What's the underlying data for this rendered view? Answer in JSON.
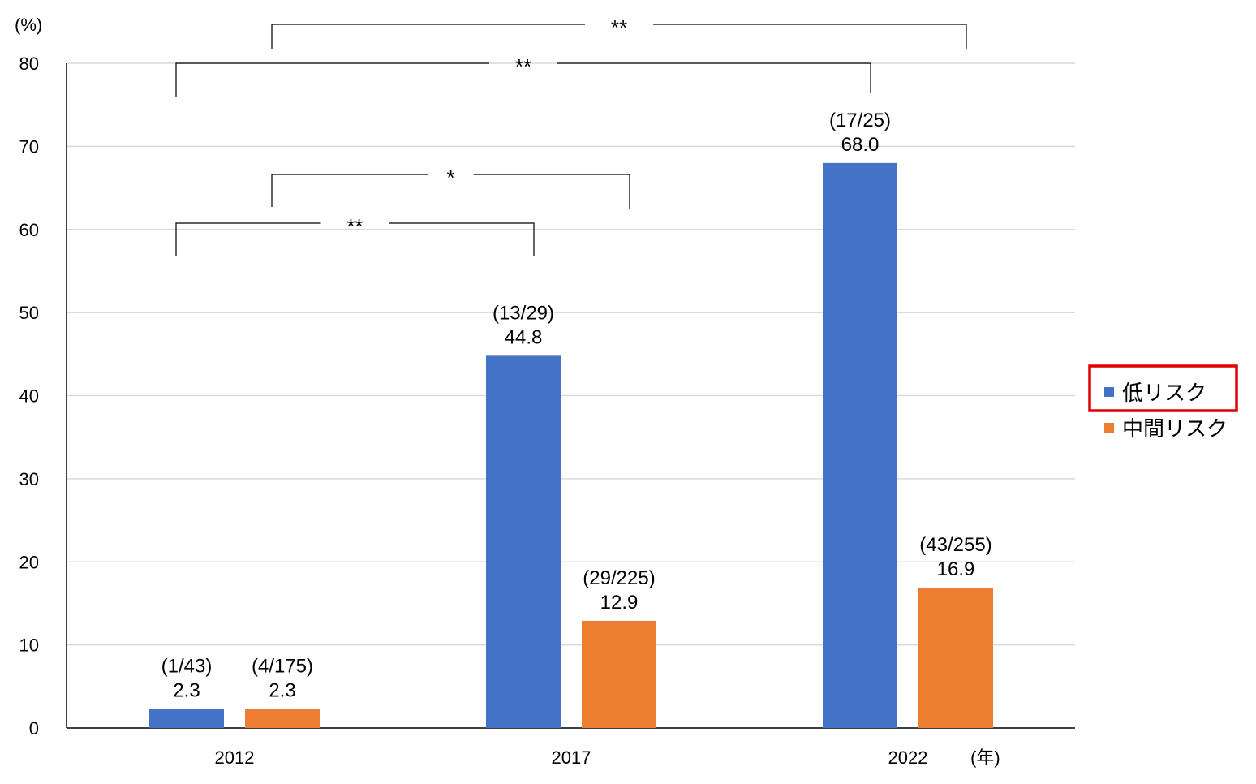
{
  "chart_data": {
    "type": "bar",
    "title": "",
    "ylabel": "(%)",
    "xlabel": "(年)",
    "ylim": [
      0,
      80
    ],
    "yticks": [
      0,
      10,
      20,
      30,
      40,
      50,
      60,
      70,
      80
    ],
    "categories": [
      "2012",
      "2017",
      "2022"
    ],
    "grid": true,
    "legend_position": "right",
    "series": [
      {
        "name": "低リスク",
        "color": "#4472C4",
        "values": [
          2.3,
          44.8,
          68.0
        ],
        "value_labels": [
          "2.3",
          "44.8",
          "68.0"
        ],
        "fraction_labels": [
          "(1/43)",
          "(13/29)",
          "(17/25)"
        ]
      },
      {
        "name": "中間リスク",
        "color": "#ED7D31",
        "values": [
          2.3,
          12.9,
          16.9
        ],
        "value_labels": [
          "2.3",
          "12.9",
          "16.9"
        ],
        "fraction_labels": [
          "(4/175)",
          "(29/225)",
          "(43/255)"
        ]
      }
    ],
    "significance": [
      {
        "from_category": "2012",
        "from_series": "低リスク",
        "to_category": "2017",
        "to_series": "低リスク",
        "label": "**"
      },
      {
        "from_category": "2012",
        "from_series": "中間リスク",
        "to_category": "2017",
        "to_series": "中間リスク",
        "label": "*"
      },
      {
        "from_category": "2012",
        "from_series": "低リスク",
        "to_category": "2022",
        "to_series": "低リスク",
        "label": "**"
      },
      {
        "from_category": "2012",
        "from_series": "中間リスク",
        "to_category": "2022",
        "to_series": "中間リスク",
        "label": "**"
      }
    ],
    "highlighted_legend_item": "低リスク",
    "highlight_color": "#E00000"
  }
}
